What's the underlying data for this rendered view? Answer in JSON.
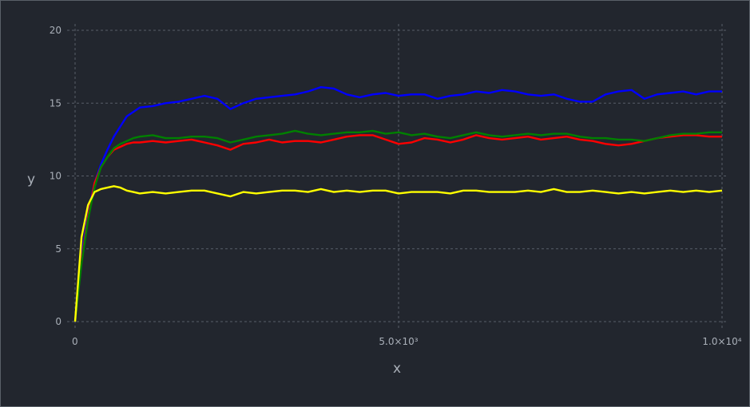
{
  "chart_data": {
    "type": "line",
    "title": "",
    "xlabel": "x",
    "ylabel": "y",
    "xlim": [
      0,
      10000
    ],
    "ylim": [
      0,
      20
    ],
    "grid": true,
    "legend": "none",
    "x_ticks": [
      {
        "value": 0,
        "label": "0"
      },
      {
        "value": 5000,
        "label": "5.0×10³"
      },
      {
        "value": 10000,
        "label": "1.0×10⁴"
      }
    ],
    "y_ticks": [
      {
        "value": 0,
        "label": "0"
      },
      {
        "value": 5,
        "label": "5"
      },
      {
        "value": 10,
        "label": "10"
      },
      {
        "value": 15,
        "label": "15"
      },
      {
        "value": 20,
        "label": "20"
      }
    ],
    "x": [
      0,
      100,
      200,
      300,
      400,
      500,
      600,
      700,
      800,
      900,
      1000,
      1200,
      1400,
      1600,
      1800,
      2000,
      2200,
      2400,
      2600,
      2800,
      3000,
      3200,
      3400,
      3600,
      3800,
      4000,
      4200,
      4400,
      4600,
      4800,
      5000,
      5200,
      5400,
      5600,
      5800,
      6000,
      6200,
      6400,
      6600,
      6800,
      7000,
      7200,
      7400,
      7600,
      7800,
      8000,
      8200,
      8400,
      8600,
      8800,
      9000,
      9200,
      9400,
      9600,
      9800,
      10000
    ],
    "series": [
      {
        "color": "#0000ff",
        "values": [
          0,
          4.5,
          7.5,
          9.5,
          10.8,
          11.8,
          12.7,
          13.4,
          14.1,
          14.4,
          14.7,
          14.8,
          15.0,
          15.1,
          15.3,
          15.5,
          15.3,
          14.6,
          15.0,
          15.3,
          15.4,
          15.5,
          15.6,
          15.8,
          16.1,
          16.0,
          15.6,
          15.4,
          15.6,
          15.7,
          15.5,
          15.6,
          15.6,
          15.3,
          15.5,
          15.6,
          15.8,
          15.7,
          15.9,
          15.8,
          15.6,
          15.5,
          15.6,
          15.3,
          15.1,
          15.1,
          15.6,
          15.8,
          15.9,
          15.3,
          15.6,
          15.7,
          15.8,
          15.6,
          15.8,
          15.8
        ]
      },
      {
        "color": "#ff0000",
        "values": [
          0,
          4.2,
          7.2,
          9.5,
          10.6,
          11.3,
          11.8,
          12.0,
          12.2,
          12.3,
          12.3,
          12.4,
          12.3,
          12.4,
          12.5,
          12.3,
          12.1,
          11.8,
          12.2,
          12.3,
          12.5,
          12.3,
          12.4,
          12.4,
          12.3,
          12.5,
          12.7,
          12.8,
          12.8,
          12.5,
          12.2,
          12.3,
          12.6,
          12.5,
          12.3,
          12.5,
          12.8,
          12.6,
          12.5,
          12.6,
          12.7,
          12.5,
          12.6,
          12.7,
          12.5,
          12.4,
          12.2,
          12.1,
          12.2,
          12.4,
          12.6,
          12.7,
          12.8,
          12.8,
          12.7,
          12.7
        ]
      },
      {
        "color": "#008000",
        "values": [
          0,
          4.0,
          7.0,
          9.2,
          10.6,
          11.3,
          11.9,
          12.2,
          12.4,
          12.6,
          12.7,
          12.8,
          12.6,
          12.6,
          12.7,
          12.7,
          12.6,
          12.3,
          12.5,
          12.7,
          12.8,
          12.9,
          13.1,
          12.9,
          12.8,
          12.9,
          13.0,
          13.0,
          13.1,
          12.9,
          13.0,
          12.8,
          12.9,
          12.7,
          12.6,
          12.8,
          13.0,
          12.8,
          12.7,
          12.8,
          12.9,
          12.8,
          12.9,
          12.9,
          12.7,
          12.6,
          12.6,
          12.5,
          12.5,
          12.4,
          12.6,
          12.8,
          12.9,
          12.9,
          13.0,
          13.0
        ]
      },
      {
        "color": "#ffff00",
        "values": [
          0,
          5.8,
          8.0,
          8.9,
          9.1,
          9.2,
          9.3,
          9.2,
          9.0,
          8.9,
          8.8,
          8.9,
          8.8,
          8.9,
          9.0,
          9.0,
          8.8,
          8.6,
          8.9,
          8.8,
          8.9,
          9.0,
          9.0,
          8.9,
          9.1,
          8.9,
          9.0,
          8.9,
          9.0,
          9.0,
          8.8,
          8.9,
          8.9,
          8.9,
          8.8,
          9.0,
          9.0,
          8.9,
          8.9,
          8.9,
          9.0,
          8.9,
          9.1,
          8.9,
          8.9,
          9.0,
          8.9,
          8.8,
          8.9,
          8.8,
          8.9,
          9.0,
          8.9,
          9.0,
          8.9,
          9.0
        ]
      }
    ]
  }
}
